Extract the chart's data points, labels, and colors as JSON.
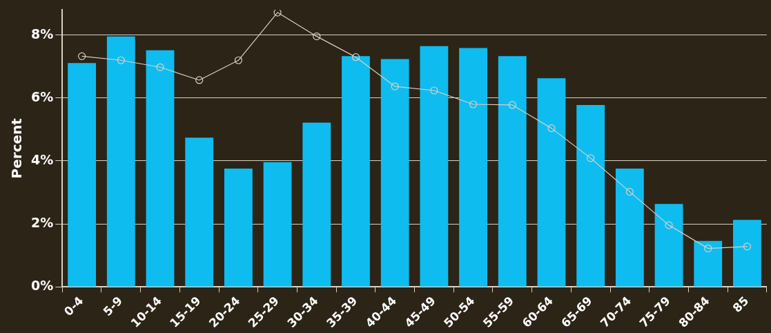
{
  "chart_data": {
    "type": "bar",
    "ylabel": "Percent",
    "categories": [
      "0-4",
      "5-9",
      "10-14",
      "15-19",
      "20-24",
      "25-29",
      "30-34",
      "35-39",
      "40-44",
      "45-49",
      "50-54",
      "55-59",
      "60-64",
      "65-69",
      "70-74",
      "75-79",
      "80-84",
      "85"
    ],
    "series": [
      {
        "color": "#0fbcf0",
        "values": [
          7.11,
          7.96,
          7.52,
          4.74,
          3.76,
          3.96,
          5.22,
          7.33,
          7.24,
          7.65,
          7.59,
          7.33,
          6.63,
          5.78,
          3.76,
          2.63,
          1.46,
          2.13
        ]
      },
      {
        "type": "line",
        "color": "#d8d2c4",
        "marker": "circle",
        "values": [
          7.33,
          7.2,
          6.98,
          6.57,
          7.2,
          8.72,
          7.96,
          7.3,
          6.37,
          6.24,
          5.8,
          5.78,
          5.04,
          4.09,
          3.02,
          1.96,
          1.22,
          1.28
        ]
      }
    ],
    "ylim": [
      0,
      8.8
    ],
    "yticks": [
      {
        "value": 0,
        "label": "0%"
      },
      {
        "value": 2,
        "label": "2%"
      },
      {
        "value": 4,
        "label": "4%"
      },
      {
        "value": 6,
        "label": "6%"
      },
      {
        "value": 8,
        "label": "8%"
      }
    ],
    "grid": "y",
    "legend": false
  }
}
